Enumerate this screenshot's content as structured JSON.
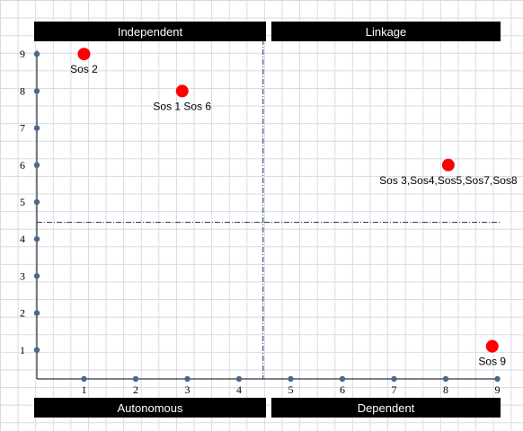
{
  "quadrants": {
    "top_left": "Independent",
    "top_right": "Linkage",
    "bottom_left": "Autonomous",
    "bottom_right": "Dependent"
  },
  "chart_data": {
    "type": "scatter",
    "title": "",
    "xlabel": "",
    "ylabel": "",
    "xlim": [
      0,
      9
    ],
    "ylim": [
      0,
      9
    ],
    "x_ticks": [
      "1",
      "2",
      "3",
      "4",
      "5",
      "6",
      "7",
      "8",
      "9"
    ],
    "y_ticks": [
      "1",
      "2",
      "3",
      "4",
      "5",
      "6",
      "7",
      "8",
      "9"
    ],
    "divider": {
      "x": 4.5,
      "y": 4.5
    },
    "grid": true,
    "points": [
      {
        "x": 1,
        "y": 9,
        "label": "Sos 2"
      },
      {
        "x": 2.9,
        "y": 8,
        "label": "Sos 1 Sos 6"
      },
      {
        "x": 8.05,
        "y": 6,
        "label": "Sos 3,Sos4,Sos5,Sos7,Sos8"
      },
      {
        "x": 8.9,
        "y": 1.1,
        "label": "Sos 9"
      }
    ],
    "colors": {
      "point": "#ff0000",
      "axis_marker": "#4a6790",
      "divider": "#1f2d50"
    }
  }
}
